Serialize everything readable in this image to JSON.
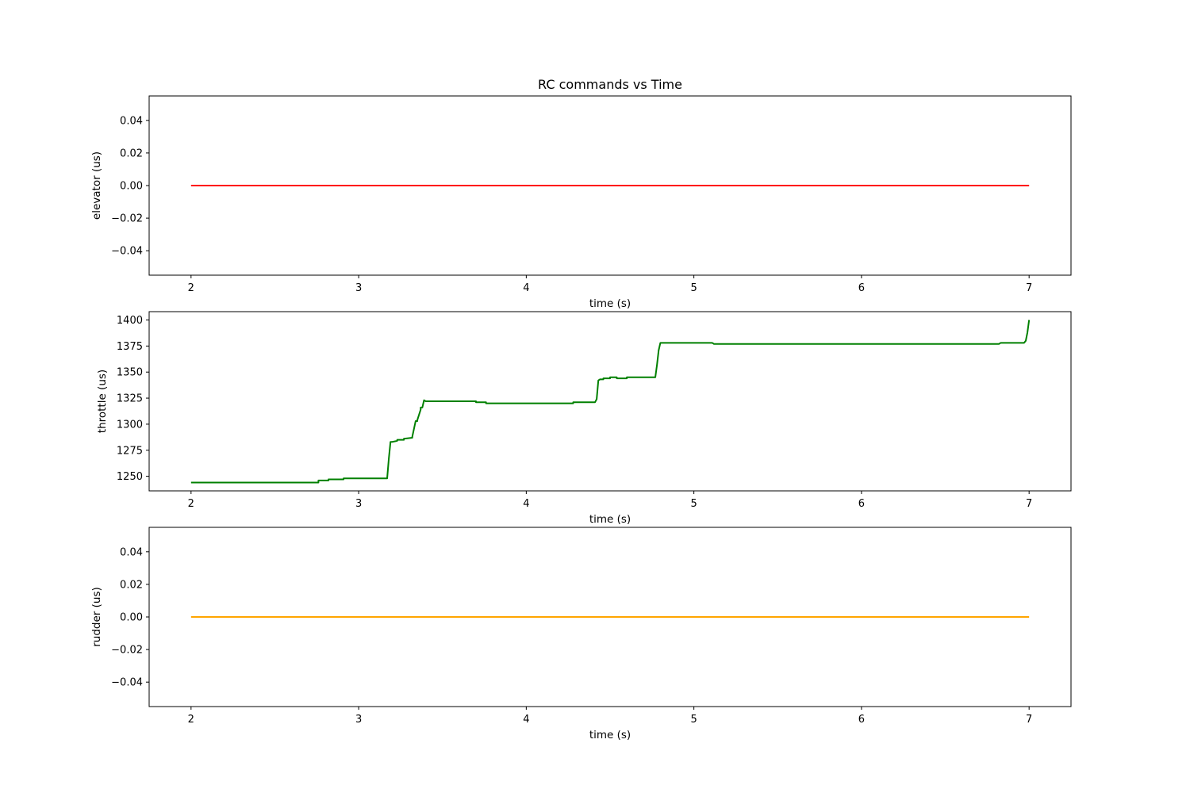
{
  "figure": {
    "title": "RC commands vs Time"
  },
  "chart_data": [
    {
      "type": "line",
      "title": "RC commands vs Time",
      "xlabel": "time (s)",
      "ylabel": "elevator (us)",
      "xlim": [
        1.75,
        7.25
      ],
      "ylim": [
        -0.055,
        0.055
      ],
      "xticks": [
        2,
        3,
        4,
        5,
        6,
        7
      ],
      "yticks": [
        0.04,
        0.02,
        0.0,
        -0.02,
        -0.04
      ],
      "ytick_labels": [
        "0.04",
        "0.02",
        "0.00",
        "−0.02",
        "−0.04"
      ],
      "grid": false,
      "color": "#ff0000",
      "series": [
        {
          "x": [
            2.0,
            7.0
          ],
          "y": [
            0.0,
            0.0
          ]
        }
      ]
    },
    {
      "type": "line",
      "title": "",
      "xlabel": "time (s)",
      "ylabel": "throttle (us)",
      "xlim": [
        1.75,
        7.25
      ],
      "ylim": [
        1236,
        1408
      ],
      "xticks": [
        2,
        3,
        4,
        5,
        6,
        7
      ],
      "yticks": [
        1400,
        1375,
        1350,
        1325,
        1300,
        1275,
        1250
      ],
      "ytick_labels": [
        "1400",
        "1375",
        "1350",
        "1325",
        "1300",
        "1275",
        "1250"
      ],
      "grid": false,
      "color": "#008000",
      "series": [
        {
          "x": [
            2.0,
            2.76,
            2.76,
            2.82,
            2.82,
            2.91,
            2.91,
            3.17,
            3.18,
            3.19,
            3.2,
            3.23,
            3.23,
            3.27,
            3.27,
            3.32,
            3.32,
            3.34,
            3.35,
            3.35,
            3.37,
            3.37,
            3.38,
            3.39,
            3.4,
            3.7,
            3.7,
            3.76,
            3.76,
            4.28,
            4.28,
            4.41,
            4.42,
            4.43,
            4.44,
            4.46,
            4.46,
            4.5,
            4.5,
            4.54,
            4.54,
            4.6,
            4.6,
            4.77,
            4.78,
            4.79,
            4.8,
            5.11,
            5.12,
            6.82,
            6.83,
            6.97,
            6.98,
            6.99,
            7.0
          ],
          "y": [
            1244,
            1244,
            1246,
            1246,
            1247,
            1247,
            1248,
            1248,
            1267,
            1283,
            1283,
            1284,
            1285,
            1285,
            1286,
            1287,
            1288,
            1303,
            1303,
            1304,
            1314,
            1316,
            1316,
            1323,
            1322,
            1322,
            1321,
            1321,
            1320,
            1320,
            1321,
            1321,
            1324,
            1342,
            1343,
            1343,
            1344,
            1344,
            1345,
            1345,
            1344,
            1344,
            1345,
            1345,
            1357,
            1371,
            1378,
            1378,
            1377,
            1377,
            1378,
            1378,
            1380,
            1388,
            1400
          ]
        }
      ]
    },
    {
      "type": "line",
      "title": "",
      "xlabel": "time (s)",
      "ylabel": "rudder (us)",
      "xlim": [
        1.75,
        7.25
      ],
      "ylim": [
        -0.055,
        0.055
      ],
      "xticks": [
        2,
        3,
        4,
        5,
        6,
        7
      ],
      "yticks": [
        0.04,
        0.02,
        0.0,
        -0.02,
        -0.04
      ],
      "ytick_labels": [
        "0.04",
        "0.02",
        "0.00",
        "−0.02",
        "−0.04"
      ],
      "grid": false,
      "color": "#ffa500",
      "series": [
        {
          "x": [
            2.0,
            7.0
          ],
          "y": [
            0.0,
            0.0
          ]
        }
      ]
    }
  ]
}
